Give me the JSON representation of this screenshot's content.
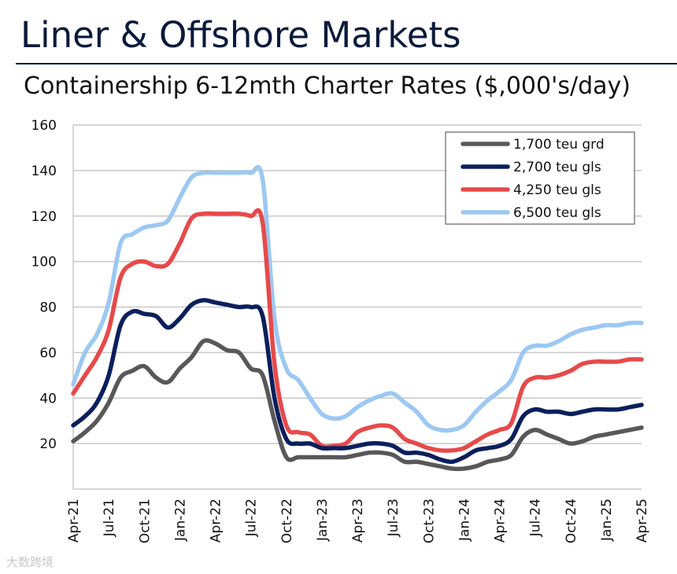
{
  "page": {
    "title": "Liner & Offshore Markets",
    "watermark": "大数跨境"
  },
  "chart_data": {
    "type": "line",
    "title": "Containership 6-12mth Charter Rates ($,000's/day)",
    "xlabel": "",
    "ylabel": "",
    "ylim": [
      0,
      160
    ],
    "yticks": [
      20,
      40,
      60,
      80,
      100,
      120,
      140,
      160
    ],
    "xlim": [
      "2021-04",
      "2025-04"
    ],
    "xticks": [
      "Apr-21",
      "Jul-21",
      "Oct-21",
      "Jan-22",
      "Apr-22",
      "Jul-22",
      "Oct-22",
      "Jan-23",
      "Apr-23",
      "Jul-23",
      "Oct-23",
      "Jan-24",
      "Apr-24",
      "Jul-24",
      "Oct-24",
      "Jan-25",
      "Apr-25"
    ],
    "grid": "horizontal",
    "legend": "top-right",
    "x": [
      "2021-04",
      "2021-05",
      "2021-06",
      "2021-07",
      "2021-08",
      "2021-09",
      "2021-10",
      "2021-11",
      "2021-12",
      "2022-01",
      "2022-02",
      "2022-03",
      "2022-04",
      "2022-05",
      "2022-06",
      "2022-07",
      "2022-08",
      "2022-09",
      "2022-10",
      "2022-11",
      "2022-12",
      "2023-01",
      "2023-02",
      "2023-03",
      "2023-04",
      "2023-05",
      "2023-06",
      "2023-07",
      "2023-08",
      "2023-09",
      "2023-10",
      "2023-11",
      "2023-12",
      "2024-01",
      "2024-02",
      "2024-03",
      "2024-04",
      "2024-05",
      "2024-06",
      "2024-07",
      "2024-08",
      "2024-09",
      "2024-10",
      "2024-11",
      "2024-12",
      "2025-01",
      "2025-02",
      "2025-03",
      "2025-04"
    ],
    "series": [
      {
        "name": "1,700 teu grd",
        "color": "#58585a",
        "values": [
          21,
          25,
          30,
          38,
          49,
          52,
          54,
          49,
          47,
          53,
          58,
          65,
          64,
          61,
          60,
          53,
          50,
          30,
          14,
          14,
          14,
          14,
          14,
          14,
          15,
          16,
          16,
          15,
          12,
          12,
          11,
          10,
          9,
          9,
          10,
          12,
          13,
          15,
          23,
          26,
          24,
          22,
          20,
          21,
          23,
          24,
          25,
          26,
          27
        ]
      },
      {
        "name": "2,700 teu gls",
        "color": "#0a1f5c",
        "values": [
          28,
          32,
          38,
          50,
          72,
          78,
          77,
          76,
          71,
          75,
          81,
          83,
          82,
          81,
          80,
          80,
          76,
          40,
          22,
          20,
          20,
          18,
          18,
          18,
          19,
          20,
          20,
          19,
          16,
          16,
          15,
          13,
          12,
          14,
          17,
          18,
          19,
          22,
          32,
          35,
          34,
          34,
          33,
          34,
          35,
          35,
          35,
          36,
          37
        ]
      },
      {
        "name": "4,250 teu gls",
        "color": "#e64a4a",
        "values": [
          42,
          50,
          58,
          70,
          93,
          99,
          100,
          98,
          99,
          108,
          119,
          121,
          121,
          121,
          121,
          120,
          117,
          55,
          28,
          25,
          24,
          19,
          19,
          20,
          25,
          27,
          28,
          27,
          22,
          20,
          18,
          17,
          17,
          18,
          21,
          24,
          26,
          29,
          45,
          49,
          49,
          50,
          52,
          55,
          56,
          56,
          56,
          57,
          57
        ]
      },
      {
        "name": "6,500 teu gls",
        "color": "#9cc8f2",
        "values": [
          46,
          60,
          68,
          82,
          108,
          112,
          115,
          116,
          118,
          128,
          137,
          139,
          139,
          139,
          139,
          139,
          136,
          75,
          53,
          48,
          40,
          33,
          31,
          32,
          36,
          39,
          41,
          42,
          38,
          34,
          28,
          26,
          26,
          28,
          34,
          39,
          43,
          48,
          60,
          63,
          63,
          65,
          68,
          70,
          71,
          72,
          72,
          73,
          73
        ]
      }
    ]
  }
}
